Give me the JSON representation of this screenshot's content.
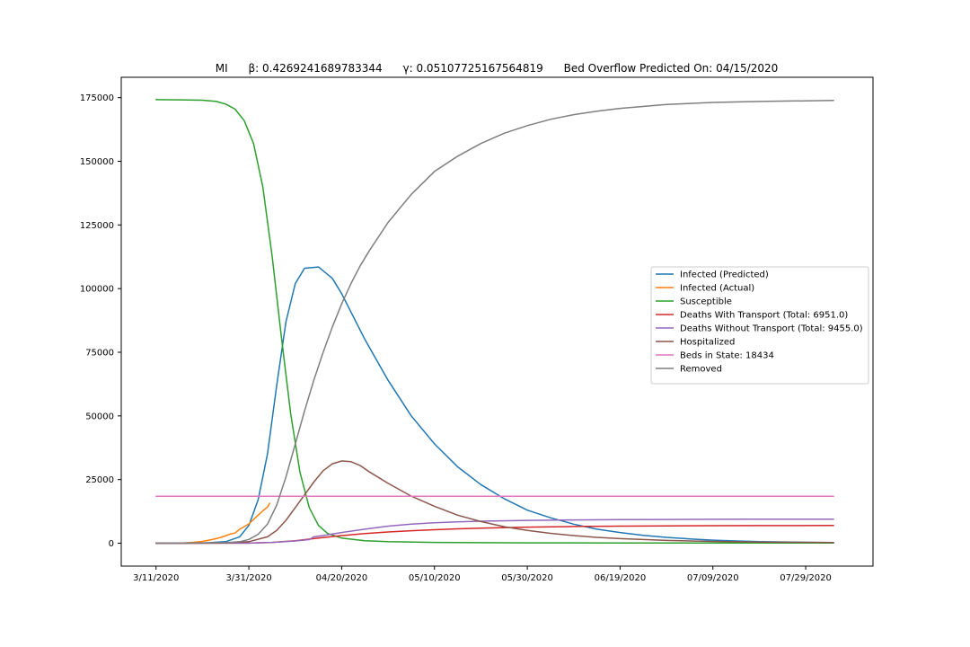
{
  "chart_data": {
    "type": "line",
    "title": "MI      β: 0.4269241689783344      γ: 0.05107725167564819      Bed Overflow Predicted On: 04/15/2020",
    "xlabel": "",
    "ylabel": "",
    "xlim": [
      -7.5,
      154.5
    ],
    "ylim": [
      -9000,
      183000
    ],
    "grid": false,
    "legend_position": "center-right",
    "x_ticks": [
      {
        "x": 0,
        "label": "3/11/2020"
      },
      {
        "x": 20,
        "label": "3/31/2020"
      },
      {
        "x": 40,
        "label": "04/20/2020"
      },
      {
        "x": 60,
        "label": "05/10/2020"
      },
      {
        "x": 80,
        "label": "05/30/2020"
      },
      {
        "x": 100,
        "label": "06/19/2020"
      },
      {
        "x": 120,
        "label": "07/09/2020"
      },
      {
        "x": 140,
        "label": "07/29/2020"
      }
    ],
    "y_ticks": [
      {
        "y": 0,
        "label": "0"
      },
      {
        "y": 25000,
        "label": "25000"
      },
      {
        "y": 50000,
        "label": "50000"
      },
      {
        "y": 75000,
        "label": "75000"
      },
      {
        "y": 100000,
        "label": "100000"
      },
      {
        "y": 125000,
        "label": "125000"
      },
      {
        "y": 150000,
        "label": "150000"
      },
      {
        "y": 175000,
        "label": "175000"
      }
    ],
    "series": [
      {
        "name": "Infected (Predicted)",
        "color": "#1f77b4",
        "points": [
          [
            0,
            0
          ],
          [
            10,
            50
          ],
          [
            15,
            600
          ],
          [
            18,
            2500
          ],
          [
            20,
            7000
          ],
          [
            22,
            17000
          ],
          [
            24,
            35000
          ],
          [
            26,
            62000
          ],
          [
            28,
            87000
          ],
          [
            30,
            102000
          ],
          [
            32,
            108000
          ],
          [
            35,
            108500
          ],
          [
            38,
            104000
          ],
          [
            40,
            98000
          ],
          [
            45,
            80000
          ],
          [
            50,
            64000
          ],
          [
            55,
            50000
          ],
          [
            60,
            39000
          ],
          [
            65,
            30000
          ],
          [
            70,
            23000
          ],
          [
            75,
            17500
          ],
          [
            80,
            13000
          ],
          [
            85,
            10000
          ],
          [
            90,
            7500
          ],
          [
            95,
            5500
          ],
          [
            100,
            4200
          ],
          [
            105,
            3100
          ],
          [
            110,
            2300
          ],
          [
            115,
            1700
          ],
          [
            120,
            1200
          ],
          [
            125,
            900
          ],
          [
            130,
            650
          ],
          [
            135,
            480
          ],
          [
            140,
            350
          ],
          [
            146,
            250
          ]
        ]
      },
      {
        "name": "Infected (Actual)",
        "color": "#ff7f0e",
        "points": [
          [
            0,
            0
          ],
          [
            4,
            50
          ],
          [
            6,
            150
          ],
          [
            8,
            350
          ],
          [
            10,
            700
          ],
          [
            12,
            1400
          ],
          [
            14,
            2300
          ],
          [
            16,
            3600
          ],
          [
            17,
            4000
          ],
          [
            18,
            5500
          ],
          [
            19,
            6500
          ],
          [
            20,
            7600
          ],
          [
            21,
            9300
          ],
          [
            22,
            11000
          ],
          [
            23,
            12700
          ],
          [
            24,
            14200
          ],
          [
            24.5,
            15700
          ]
        ]
      },
      {
        "name": "Susceptible",
        "color": "#2ca02c",
        "points": [
          [
            0,
            174200
          ],
          [
            5,
            174150
          ],
          [
            10,
            174000
          ],
          [
            13,
            173500
          ],
          [
            15,
            172500
          ],
          [
            17,
            170500
          ],
          [
            19,
            166000
          ],
          [
            21,
            157000
          ],
          [
            23,
            140000
          ],
          [
            25,
            113000
          ],
          [
            27,
            81000
          ],
          [
            29,
            51000
          ],
          [
            31,
            28000
          ],
          [
            33,
            14000
          ],
          [
            35,
            7000
          ],
          [
            37,
            3800
          ],
          [
            40,
            2000
          ],
          [
            45,
            1000
          ],
          [
            50,
            600
          ],
          [
            60,
            300
          ],
          [
            80,
            150
          ],
          [
            100,
            100
          ],
          [
            146,
            100
          ]
        ]
      },
      {
        "name": "Deaths With Transport (Total: 6951.0)",
        "color": "#d62728",
        "points": [
          [
            0,
            0
          ],
          [
            20,
            50
          ],
          [
            25,
            300
          ],
          [
            30,
            1000
          ],
          [
            35,
            2000
          ],
          [
            40,
            3000
          ],
          [
            45,
            3800
          ],
          [
            50,
            4400
          ],
          [
            55,
            4900
          ],
          [
            60,
            5300
          ],
          [
            65,
            5650
          ],
          [
            70,
            5900
          ],
          [
            80,
            6300
          ],
          [
            90,
            6550
          ],
          [
            100,
            6700
          ],
          [
            110,
            6800
          ],
          [
            120,
            6870
          ],
          [
            130,
            6910
          ],
          [
            146,
            6951
          ]
        ]
      },
      {
        "name": "Deaths Without Transport (Total: 9455.0)",
        "color": "#9467bd",
        "points": [
          [
            0,
            0
          ],
          [
            20,
            50
          ],
          [
            25,
            300
          ],
          [
            30,
            900
          ],
          [
            33,
            1400
          ],
          [
            34,
            2500
          ],
          [
            36,
            3000
          ],
          [
            38,
            3600
          ],
          [
            40,
            4200
          ],
          [
            45,
            5500
          ],
          [
            50,
            6700
          ],
          [
            55,
            7500
          ],
          [
            60,
            8000
          ],
          [
            65,
            8400
          ],
          [
            70,
            8650
          ],
          [
            80,
            8950
          ],
          [
            90,
            9150
          ],
          [
            100,
            9250
          ],
          [
            110,
            9320
          ],
          [
            120,
            9380
          ],
          [
            130,
            9420
          ],
          [
            146,
            9455
          ]
        ]
      },
      {
        "name": "Hospitalized",
        "color": "#8c564b",
        "points": [
          [
            0,
            0
          ],
          [
            15,
            100
          ],
          [
            20,
            600
          ],
          [
            24,
            2500
          ],
          [
            26,
            5000
          ],
          [
            28,
            9000
          ],
          [
            30,
            14000
          ],
          [
            32,
            19000
          ],
          [
            34,
            24000
          ],
          [
            36,
            28500
          ],
          [
            38,
            31200
          ],
          [
            40,
            32300
          ],
          [
            42,
            32000
          ],
          [
            44,
            30500
          ],
          [
            46,
            28000
          ],
          [
            50,
            23500
          ],
          [
            55,
            18500
          ],
          [
            60,
            14500
          ],
          [
            65,
            11000
          ],
          [
            70,
            8500
          ],
          [
            75,
            6500
          ],
          [
            80,
            5000
          ],
          [
            85,
            3900
          ],
          [
            90,
            3000
          ],
          [
            95,
            2300
          ],
          [
            100,
            1800
          ],
          [
            110,
            1100
          ],
          [
            120,
            700
          ],
          [
            130,
            450
          ],
          [
            146,
            250
          ]
        ]
      },
      {
        "name": "Beds in State: 18434",
        "color": "#e377c2",
        "points": [
          [
            0,
            18434
          ],
          [
            146,
            18434
          ]
        ]
      },
      {
        "name": "Removed",
        "color": "#7f7f7f",
        "points": [
          [
            0,
            0
          ],
          [
            15,
            200
          ],
          [
            18,
            600
          ],
          [
            20,
            1500
          ],
          [
            22,
            3500
          ],
          [
            24,
            7500
          ],
          [
            26,
            15000
          ],
          [
            28,
            26000
          ],
          [
            30,
            39000
          ],
          [
            32,
            52000
          ],
          [
            34,
            64000
          ],
          [
            36,
            75000
          ],
          [
            38,
            85000
          ],
          [
            40,
            94000
          ],
          [
            42,
            102000
          ],
          [
            44,
            109000
          ],
          [
            46,
            115000
          ],
          [
            50,
            126000
          ],
          [
            55,
            137000
          ],
          [
            60,
            146000
          ],
          [
            65,
            152000
          ],
          [
            70,
            157000
          ],
          [
            75,
            161000
          ],
          [
            80,
            164000
          ],
          [
            85,
            166500
          ],
          [
            90,
            168300
          ],
          [
            95,
            169700
          ],
          [
            100,
            170800
          ],
          [
            110,
            172300
          ],
          [
            120,
            173100
          ],
          [
            130,
            173500
          ],
          [
            146,
            173900
          ]
        ]
      }
    ]
  }
}
